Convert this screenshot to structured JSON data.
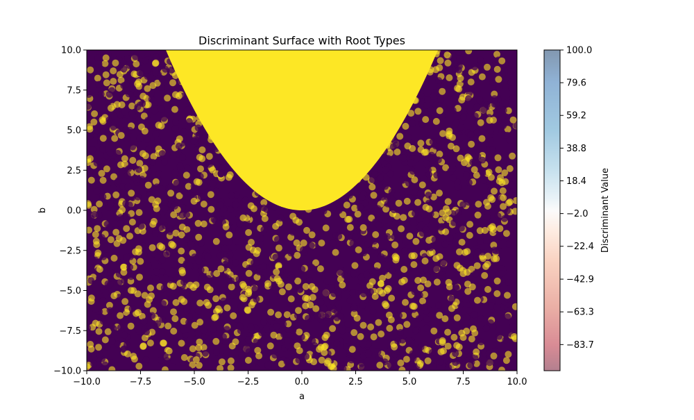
{
  "chart_data": {
    "type": "scatter",
    "title": "Discriminant Surface with Root Types",
    "xlabel": "a",
    "ylabel": "b",
    "xlim": [
      -10,
      10
    ],
    "ylim": [
      -10,
      10
    ],
    "xticks": [
      "−10.0",
      "−7.5",
      "−5.0",
      "−2.5",
      "0.0",
      "2.5",
      "5.0",
      "7.5",
      "10.0"
    ],
    "yticks": [
      "−10.0",
      "−7.5",
      "−5.0",
      "−2.5",
      "0.0",
      "2.5",
      "5.0",
      "7.5",
      "10.0"
    ],
    "grid": false,
    "region": {
      "name": "b > a²/4",
      "color": "#fde725",
      "boundary_curve": "b = a^2/4"
    },
    "scatter_colors": {
      "purple": "#440154",
      "yellow": "#fde725"
    },
    "colorbar": {
      "label": "Discriminant Value",
      "range": [
        -100,
        100
      ],
      "colormap": "RdBu",
      "alpha": 0.5,
      "ticks": [
        "100.0",
        "79.6",
        "59.2",
        "38.8",
        "18.4",
        "−2.0",
        "−22.4",
        "−42.9",
        "−63.3",
        "−83.7"
      ],
      "tick_values": [
        100.0,
        79.6,
        59.2,
        38.8,
        18.4,
        -2.0,
        -22.4,
        -42.9,
        -63.3,
        -83.7
      ]
    }
  }
}
